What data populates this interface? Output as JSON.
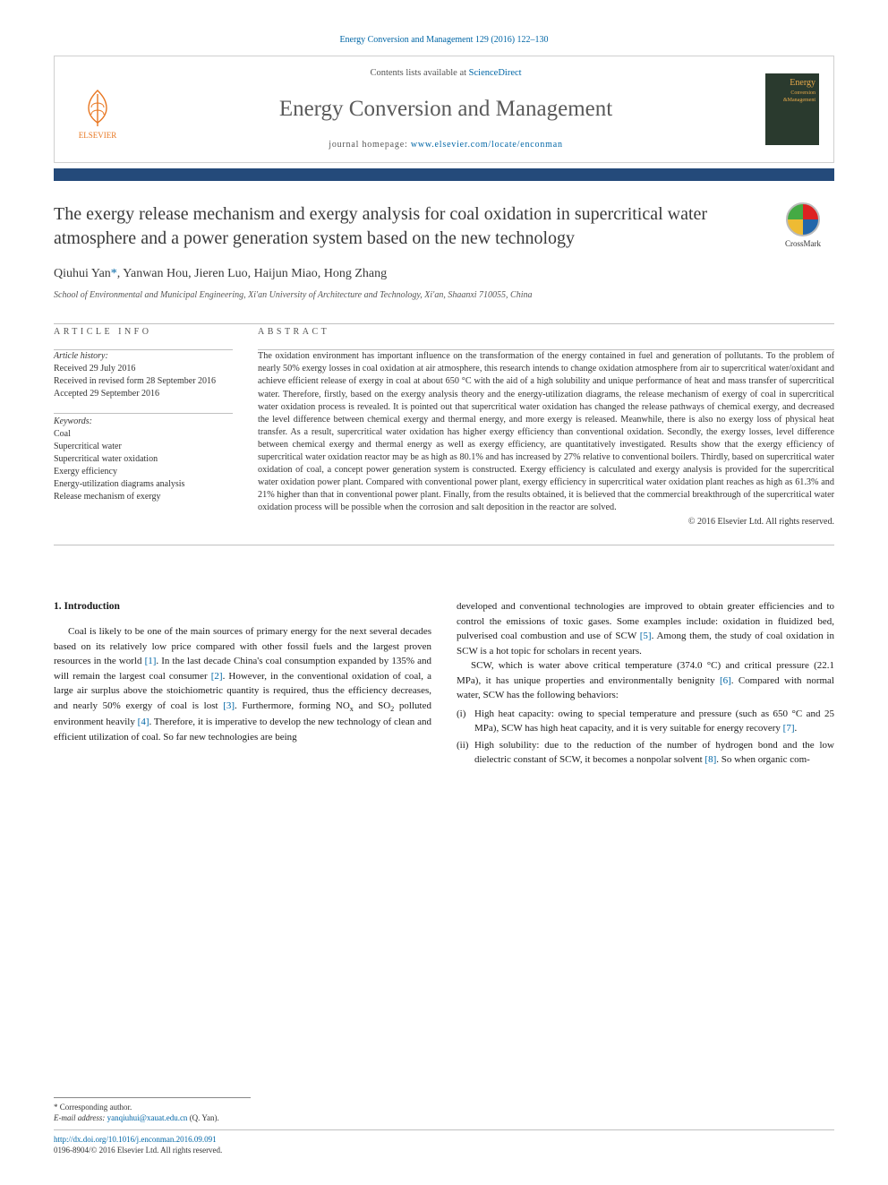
{
  "header": {
    "citation": "Energy Conversion and Management 129 (2016) 122–130",
    "contents_prefix": "Contents lists available at ",
    "contents_link": "ScienceDirect",
    "journal_name": "Energy Conversion and Management",
    "homepage_prefix": "journal homepage: ",
    "homepage_url": "www.elsevier.com/locate/enconman",
    "elsevier_label": "ELSEVIER",
    "cover_text_top": "Energy",
    "cover_text_sub": "Conversion\n&Management",
    "crossmark_label": "CrossMark"
  },
  "article": {
    "title": "The exergy release mechanism and exergy analysis for coal oxidation in supercritical water atmosphere and a power generation system based on the new technology",
    "authors_html": "Qiuhui Yan<span class='corr'>*</span>, Yanwan Hou, Jieren Luo, Haijun Miao, Hong Zhang",
    "affiliation": "School of Environmental and Municipal Engineering, Xi'an University of Architecture and Technology, Xi'an, Shaanxi 710055, China"
  },
  "info": {
    "heading": "ARTICLE INFO",
    "history_label": "Article history:",
    "history": [
      "Received 29 July 2016",
      "Received in revised form 28 September 2016",
      "Accepted 29 September 2016"
    ],
    "keywords_label": "Keywords:",
    "keywords": [
      "Coal",
      "Supercritical water",
      "Supercritical water oxidation",
      "Exergy efficiency",
      "Energy-utilization diagrams analysis",
      "Release mechanism of exergy"
    ]
  },
  "abstract": {
    "heading": "ABSTRACT",
    "text": "The oxidation environment has important influence on the transformation of the energy contained in fuel and generation of pollutants. To the problem of nearly 50% exergy losses in coal oxidation at air atmosphere, this research intends to change oxidation atmosphere from air to supercritical water/oxidant and achieve efficient release of exergy in coal at about 650 °C with the aid of a high solubility and unique performance of heat and mass transfer of supercritical water. Therefore, firstly, based on the exergy analysis theory and the energy-utilization diagrams, the release mechanism of exergy of coal in supercritical water oxidation process is revealed. It is pointed out that supercritical water oxidation has changed the release pathways of chemical exergy, and decreased the level difference between chemical exergy and thermal energy, and more exergy is released. Meanwhile, there is also no exergy loss of physical heat transfer. As a result, supercritical water oxidation has higher exergy efficiency than conventional oxidation. Secondly, the exergy losses, level difference between chemical exergy and thermal energy as well as exergy efficiency, are quantitatively investigated. Results show that the exergy efficiency of supercritical water oxidation reactor may be as high as 80.1% and has increased by 27% relative to conventional boilers. Thirdly, based on supercritical water oxidation of coal, a concept power generation system is constructed. Exergy efficiency is calculated and exergy analysis is provided for the supercritical water oxidation power plant. Compared with conventional power plant, exergy efficiency in supercritical water oxidation plant reaches as high as 61.3% and 21% higher than that in conventional power plant. Finally, from the results obtained, it is believed that the commercial breakthrough of the supercritical water oxidation process will be possible when the corrosion and salt deposition in the reactor are solved.",
    "copyright": "© 2016 Elsevier Ltd. All rights reserved."
  },
  "body": {
    "section_heading": "1. Introduction",
    "col1_p1_html": "Coal is likely to be one of the main sources of primary energy for the next several decades based on its relatively low price compared with other fossil fuels and the largest proven resources in the world <a class='ref-link'>[1]</a>. In the last decade China's coal consumption expanded by 135% and will remain the largest coal consumer <a class='ref-link'>[2]</a>. However, in the conventional oxidation of coal, a large air surplus above the stoichiometric quantity is required, thus the efficiency decreases, and nearly 50% exergy of coal is lost <a class='ref-link'>[3]</a>. Furthermore, forming NO<sub>x</sub> and SO<sub>2</sub> polluted environment heavily <a class='ref-link'>[4]</a>. Therefore, it is imperative to develop the new technology of clean and efficient utilization of coal. So far new technologies are being",
    "col2_p1_html": "developed and conventional technologies are improved to obtain greater efficiencies and to control the emissions of toxic gases. Some examples include: oxidation in fluidized bed, pulverised coal combustion and use of SCW <a class='ref-link'>[5]</a>. Among them, the study of coal oxidation in SCW is a hot topic for scholars in recent years.",
    "col2_p2_html": "SCW, which is water above critical temperature (374.0 °C) and critical pressure (22.1 MPa), it has unique properties and environmentally benignity <a class='ref-link'>[6]</a>. Compared with normal water, SCW has the following behaviors:",
    "list_items": [
      {
        "marker": "(i)",
        "html": "High heat capacity: owing to special temperature and pressure (such as 650 °C and 25 MPa), SCW has high heat capacity, and it is very suitable for energy recovery <a class='ref-link'>[7]</a>."
      },
      {
        "marker": "(ii)",
        "html": "High solubility: due to the reduction of the number of hydrogen bond and the low dielectric constant of SCW, it becomes a nonpolar solvent <a class='ref-link'>[8]</a>. So when organic com-"
      }
    ]
  },
  "footer": {
    "corr_label": "* Corresponding author.",
    "email_label": "E-mail address:",
    "email": "yanqiuhui@xauat.edu.cn",
    "email_who": "(Q. Yan).",
    "doi_url": "http://dx.doi.org/10.1016/j.enconman.2016.09.091",
    "issn_line": "0196-8904/© 2016 Elsevier Ltd. All rights reserved."
  },
  "colors": {
    "link": "#0066a6",
    "bar": "#244a7a",
    "elsevier_orange": "#e87722",
    "text": "#333333",
    "rule": "#c0c0c0"
  }
}
